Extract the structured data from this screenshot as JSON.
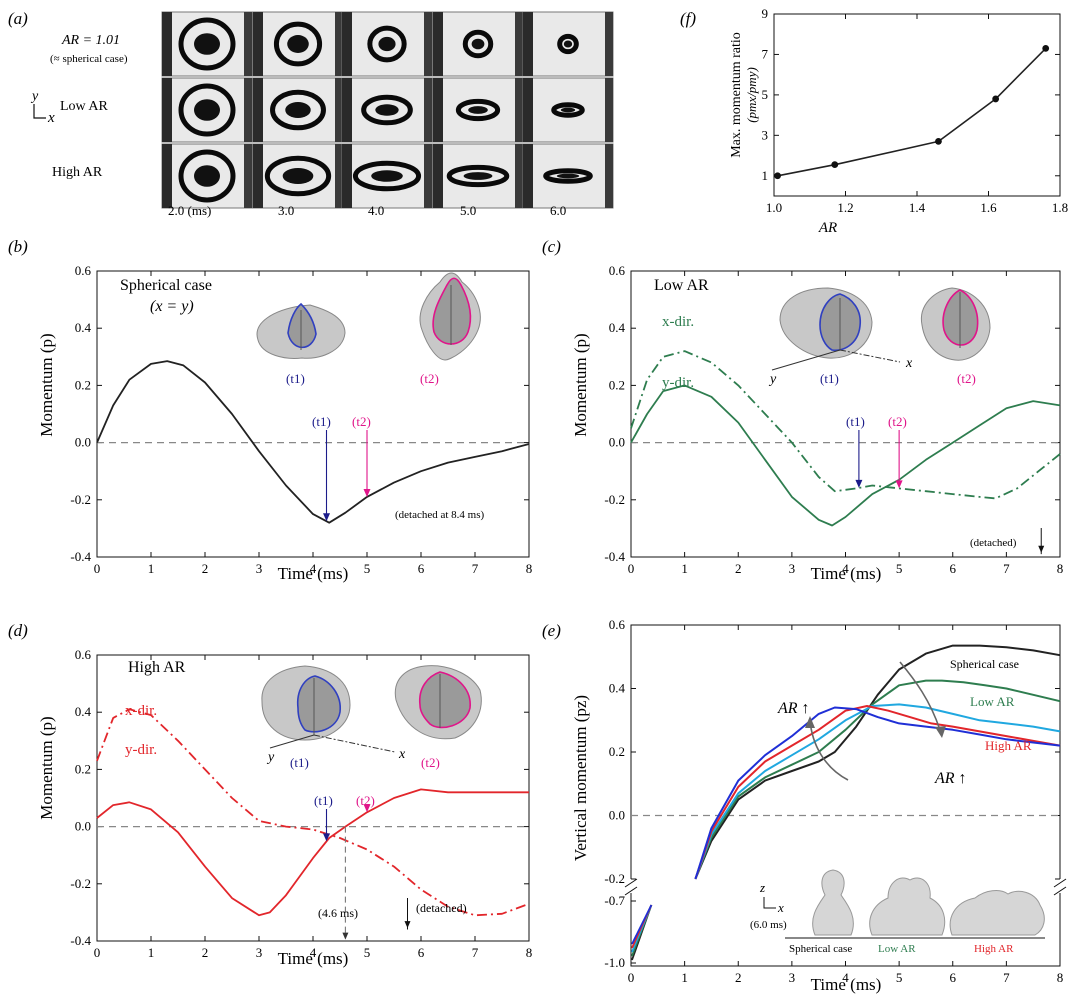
{
  "colors": {
    "black": "#222222",
    "green": "#2e7d4f",
    "red": "#e2262b",
    "blue": "#1f2fd6",
    "cyan": "#20a8e0",
    "navy": "#1c1c8a",
    "magenta": "#e0158a",
    "gray_dash": "#888888"
  },
  "panel_a": {
    "letter": "(a)",
    "row_labels": [
      {
        "main": "AR = 1.01",
        "sub": "(≈ spherical case)"
      },
      {
        "main": "Low AR",
        "sub": ""
      },
      {
        "main": "High AR",
        "sub": ""
      }
    ],
    "axis_glyph": {
      "y": "y",
      "x": "x"
    },
    "time_labels": [
      "2.0 (ms)",
      "3.0",
      "4.0",
      "5.0",
      "6.0"
    ]
  },
  "panels": {
    "b": {
      "letter": "(b)",
      "ylabel": "Momentum (p)",
      "xlabel": "Time (ms)",
      "title": "Spherical case",
      "subtitle": "(x = y)",
      "note": "(detached at 8.4 ms)",
      "t1": "(t1)",
      "t2": "(t2)"
    },
    "c": {
      "letter": "(c)",
      "ylabel": "Momentum (p)",
      "xlabel": "Time (ms)",
      "title": "Low AR",
      "xdir": "x-dir.",
      "ydir": "y-dir.",
      "note": "(detached)",
      "t1": "(t1)",
      "t2": "(t2)",
      "axis_y": "y",
      "axis_x": "x"
    },
    "d": {
      "letter": "(d)",
      "ylabel": "Momentum (p)",
      "xlabel": "Time (ms)",
      "title": "High AR",
      "xdir": "x-dir.",
      "ydir": "y-dir.",
      "note": "(detached)",
      "mark": "(4.6 ms)",
      "t1": "(t1)",
      "t2": "(t2)",
      "axis_y": "y",
      "axis_x": "x"
    },
    "e": {
      "letter": "(e)",
      "ylabel": "Vertical momentum (pz)",
      "xlabel": "Time (ms)",
      "label_spherical": "Spherical case",
      "label_low": "Low AR",
      "label_high": "High AR",
      "ar_up": "AR ↑",
      "inset_time": "(6.0 ms)",
      "inset_axis_z": "z",
      "inset_axis_x": "x",
      "inset_labels": [
        "Spherical case",
        "Low AR",
        "High AR"
      ]
    },
    "f": {
      "letter": "(f)",
      "ylabel": "Max. momentum ratio",
      "ylabel2": "(pmx/pmy)",
      "xlabel": "AR"
    }
  },
  "chart_data": [
    {
      "id": "b",
      "type": "line",
      "xlim": [
        0,
        8
      ],
      "ylim": [
        -0.4,
        0.6
      ],
      "xticks": [
        0,
        1,
        2,
        3,
        4,
        5,
        6,
        7,
        8
      ],
      "yticks": [
        -0.4,
        -0.2,
        0.0,
        0.2,
        0.4,
        0.6
      ],
      "ytick_labels": [
        "-0.4",
        "-0.2",
        "0.0",
        "0.2",
        "0.4",
        "0.6"
      ],
      "series": [
        {
          "color": "black",
          "style": "solid",
          "x": [
            0,
            0.3,
            0.6,
            1.0,
            1.3,
            1.6,
            2.0,
            2.5,
            3.0,
            3.5,
            4.0,
            4.3,
            4.6,
            5.0,
            5.5,
            6.0,
            6.5,
            7.0,
            7.5,
            8.0
          ],
          "y": [
            0.0,
            0.13,
            0.22,
            0.275,
            0.285,
            0.27,
            0.21,
            0.1,
            -0.03,
            -0.15,
            -0.25,
            -0.28,
            -0.245,
            -0.19,
            -0.14,
            -0.1,
            -0.07,
            -0.05,
            -0.03,
            -0.005
          ]
        }
      ],
      "markers": [
        {
          "x": 4.25,
          "color": "navy"
        },
        {
          "x": 5.0,
          "color": "magenta"
        }
      ]
    },
    {
      "id": "c",
      "type": "line",
      "xlim": [
        0,
        8
      ],
      "ylim": [
        -0.4,
        0.6
      ],
      "xticks": [
        0,
        1,
        2,
        3,
        4,
        5,
        6,
        7,
        8
      ],
      "yticks": [
        -0.4,
        -0.2,
        0.0,
        0.2,
        0.4,
        0.6
      ],
      "ytick_labels": [
        "-0.4",
        "-0.2",
        "0.0",
        "0.2",
        "0.4",
        "0.6"
      ],
      "series": [
        {
          "name": "x-dir.",
          "color": "green",
          "style": "dashdot",
          "x": [
            0,
            0.3,
            0.6,
            1.0,
            1.5,
            2.0,
            2.5,
            3.0,
            3.5,
            3.8,
            4.2,
            4.5,
            5.0,
            5.5,
            6.0,
            6.5,
            6.8,
            7.2,
            7.6,
            8.0
          ],
          "y": [
            0.05,
            0.22,
            0.3,
            0.32,
            0.28,
            0.2,
            0.1,
            0.0,
            -0.12,
            -0.17,
            -0.16,
            -0.15,
            -0.16,
            -0.17,
            -0.18,
            -0.19,
            -0.195,
            -0.16,
            -0.1,
            -0.04
          ]
        },
        {
          "name": "y-dir.",
          "color": "green",
          "style": "solid",
          "x": [
            0,
            0.3,
            0.6,
            1.0,
            1.5,
            2.0,
            2.5,
            3.0,
            3.5,
            3.75,
            4.0,
            4.5,
            5.0,
            5.5,
            6.0,
            6.5,
            7.0,
            7.5,
            8.0
          ],
          "y": [
            0.0,
            0.1,
            0.18,
            0.2,
            0.16,
            0.07,
            -0.06,
            -0.19,
            -0.27,
            -0.29,
            -0.26,
            -0.18,
            -0.13,
            -0.06,
            0.0,
            0.06,
            0.12,
            0.145,
            0.13
          ]
        }
      ],
      "markers": [
        {
          "x": 4.25,
          "color": "navy"
        },
        {
          "x": 5.0,
          "color": "magenta"
        }
      ]
    },
    {
      "id": "d",
      "type": "line",
      "xlim": [
        0,
        8
      ],
      "ylim": [
        -0.4,
        0.6
      ],
      "xticks": [
        0,
        1,
        2,
        3,
        4,
        5,
        6,
        7,
        8
      ],
      "yticks": [
        -0.4,
        -0.2,
        0.0,
        0.2,
        0.4,
        0.6
      ],
      "ytick_labels": [
        "-0.4",
        "-0.2",
        "0.0",
        "0.2",
        "0.4",
        "0.6"
      ],
      "series": [
        {
          "name": "x-dir.",
          "color": "red",
          "style": "dashdot",
          "x": [
            0,
            0.3,
            0.6,
            1.0,
            1.5,
            2.0,
            2.5,
            3.0,
            3.5,
            4.0,
            4.5,
            5.0,
            5.5,
            6.0,
            6.5,
            7.0,
            7.5,
            8.0
          ],
          "y": [
            0.23,
            0.38,
            0.41,
            0.39,
            0.3,
            0.2,
            0.1,
            0.02,
            0.0,
            -0.01,
            -0.04,
            -0.08,
            -0.14,
            -0.22,
            -0.28,
            -0.31,
            -0.305,
            -0.27
          ]
        },
        {
          "name": "y-dir.",
          "color": "red",
          "style": "solid",
          "x": [
            0,
            0.3,
            0.6,
            1.0,
            1.5,
            2.0,
            2.5,
            3.0,
            3.2,
            3.5,
            4.0,
            4.3,
            4.6,
            5.0,
            5.5,
            6.0,
            6.5,
            7.0,
            7.5,
            8.0
          ],
          "y": [
            0.03,
            0.075,
            0.085,
            0.06,
            -0.02,
            -0.14,
            -0.25,
            -0.31,
            -0.3,
            -0.24,
            -0.11,
            -0.04,
            0.0,
            0.05,
            0.1,
            0.13,
            0.12,
            0.12,
            0.12,
            0.12
          ]
        }
      ],
      "markers": [
        {
          "x": 4.25,
          "color": "navy"
        },
        {
          "x": 5.0,
          "color": "magenta"
        }
      ]
    },
    {
      "id": "e",
      "type": "line",
      "xlim": [
        0,
        8
      ],
      "ylim": [
        -0.2,
        0.6
      ],
      "broken_axis": {
        "lower_yticks": [
          "-0.7",
          "-1.0"
        ]
      },
      "xticks": [
        0,
        1,
        2,
        3,
        4,
        5,
        6,
        7,
        8
      ],
      "yticks": [
        -0.2,
        0.0,
        0.2,
        0.4,
        0.6
      ],
      "ytick_labels": [
        "-0.2",
        "0.0",
        "0.2",
        "0.4",
        "0.6"
      ],
      "series": [
        {
          "name": "Spherical case",
          "color": "black",
          "x": [
            1.2,
            1.5,
            2.0,
            2.5,
            3.0,
            3.5,
            3.8,
            4.2,
            4.6,
            5.0,
            5.5,
            6.0,
            6.5,
            7.0,
            7.5,
            8.0
          ],
          "y": [
            -0.2,
            -0.08,
            0.05,
            0.11,
            0.14,
            0.17,
            0.2,
            0.28,
            0.38,
            0.46,
            0.51,
            0.535,
            0.535,
            0.53,
            0.52,
            0.505
          ]
        },
        {
          "name": "Low AR",
          "color": "green",
          "x": [
            1.2,
            1.5,
            2.0,
            2.5,
            3.0,
            3.5,
            4.0,
            4.5,
            5.0,
            5.5,
            5.8,
            6.2,
            6.6,
            7.0,
            7.5,
            8.0
          ],
          "y": [
            -0.2,
            -0.07,
            0.06,
            0.12,
            0.16,
            0.2,
            0.27,
            0.35,
            0.41,
            0.425,
            0.425,
            0.42,
            0.41,
            0.4,
            0.38,
            0.36
          ]
        },
        {
          "name": "",
          "color": "cyan",
          "x": [
            1.2,
            1.5,
            2.0,
            2.5,
            3.0,
            3.5,
            4.0,
            4.5,
            5.0,
            5.5,
            6.0,
            6.5,
            7.0,
            7.5,
            8.0
          ],
          "y": [
            -0.2,
            -0.06,
            0.07,
            0.14,
            0.19,
            0.24,
            0.3,
            0.345,
            0.35,
            0.34,
            0.32,
            0.3,
            0.29,
            0.28,
            0.265
          ]
        },
        {
          "name": "High AR",
          "color": "red",
          "x": [
            1.2,
            1.5,
            2.0,
            2.5,
            3.0,
            3.5,
            4.0,
            4.4,
            4.8,
            5.2,
            5.6,
            6.0,
            6.5,
            7.0,
            7.5,
            8.0
          ],
          "y": [
            -0.2,
            -0.05,
            0.09,
            0.17,
            0.22,
            0.27,
            0.33,
            0.345,
            0.33,
            0.31,
            0.29,
            0.28,
            0.265,
            0.25,
            0.235,
            0.22
          ]
        },
        {
          "name": "",
          "color": "blue",
          "x": [
            1.2,
            1.5,
            2.0,
            2.5,
            3.0,
            3.5,
            3.8,
            4.2,
            4.6,
            5.0,
            5.5,
            6.0,
            6.5,
            7.0,
            7.5,
            8.0
          ],
          "y": [
            -0.2,
            -0.04,
            0.11,
            0.19,
            0.25,
            0.32,
            0.34,
            0.335,
            0.31,
            0.29,
            0.28,
            0.27,
            0.255,
            0.24,
            0.23,
            0.22
          ]
        }
      ]
    },
    {
      "id": "f",
      "type": "scatter",
      "xlim": [
        1.0,
        1.8
      ],
      "ylim": [
        0,
        9
      ],
      "xticks": [
        1.0,
        1.2,
        1.4,
        1.6,
        1.8
      ],
      "xtick_labels": [
        "1.0",
        "1.2",
        "1.4",
        "1.6",
        "1.8"
      ],
      "yticks": [
        1,
        3,
        5,
        7,
        9
      ],
      "ytick_labels": [
        "1",
        "3",
        "5",
        "7",
        "9"
      ],
      "series": [
        {
          "color": "black",
          "x": [
            1.01,
            1.17,
            1.46,
            1.62,
            1.76
          ],
          "y": [
            1.0,
            1.55,
            2.7,
            4.8,
            7.3
          ]
        }
      ]
    }
  ]
}
